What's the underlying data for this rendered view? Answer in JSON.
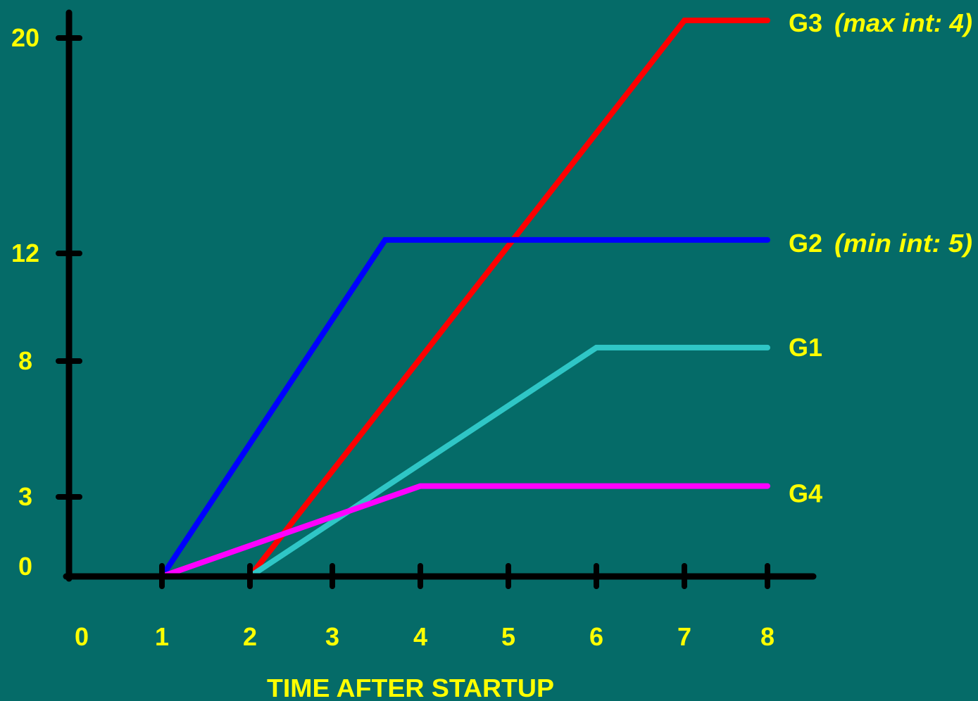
{
  "chart_data": {
    "type": "line",
    "xlabel": "TIME AFTER STARTUP",
    "ylabel": "",
    "title": "",
    "x_ticks": [
      0,
      1,
      2,
      3,
      4,
      5,
      6,
      7,
      8
    ],
    "y_ticks": [
      0,
      3,
      8,
      12,
      20
    ],
    "xlim": [
      0,
      8
    ],
    "ylim": [
      0,
      20
    ],
    "grid": false,
    "colors": {
      "background": "#056b68",
      "axis": "#000000",
      "text": "#ffff00"
    },
    "series": [
      {
        "name": "G3",
        "note": "(max int: 4)",
        "color": "#ff0000",
        "points": [
          [
            2,
            0
          ],
          [
            7,
            21
          ],
          [
            8,
            21
          ]
        ]
      },
      {
        "name": "G2",
        "note": "(min int: 5)",
        "color": "#0000ff",
        "points": [
          [
            1,
            0
          ],
          [
            3.6,
            12.5
          ],
          [
            8,
            12.5
          ]
        ]
      },
      {
        "name": "G1",
        "note": "",
        "color": "#2fc6c6",
        "points": [
          [
            2,
            0
          ],
          [
            6,
            8.5
          ],
          [
            8,
            8.5
          ]
        ]
      },
      {
        "name": "G4",
        "note": "",
        "color": "#ff00ff",
        "points": [
          [
            1,
            0
          ],
          [
            4,
            3.4
          ],
          [
            8,
            3.4
          ]
        ]
      }
    ]
  }
}
